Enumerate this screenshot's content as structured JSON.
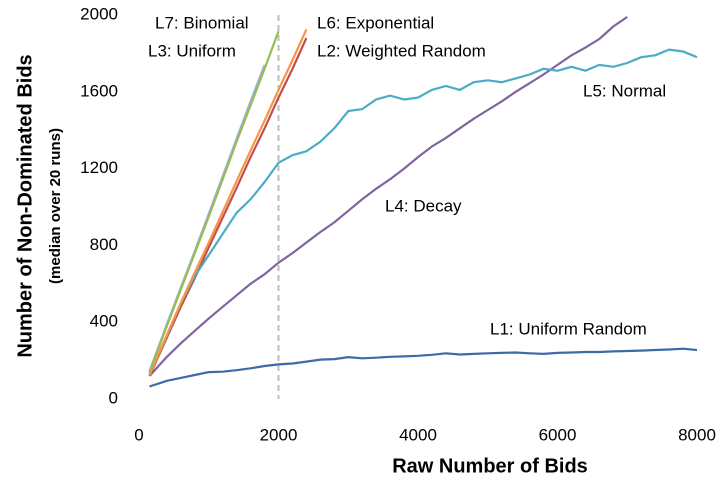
{
  "chart_data": {
    "type": "line",
    "y_label": "Number of Non-Dominated Bids",
    "y_sublabel": "(median over 20 runs)",
    "x_label": "Raw Number of Bids",
    "x": [
      150,
      400,
      600,
      800,
      1000,
      1200,
      1400,
      1600,
      1800,
      2000,
      2200,
      2400,
      2600,
      2800,
      3000,
      3200,
      3400,
      3600,
      3800,
      4000,
      4200,
      4400,
      4600,
      4800,
      5000,
      5200,
      5400,
      5600,
      5800,
      6000,
      6200,
      6400,
      6600,
      6800,
      7000,
      7200,
      7400,
      7600,
      7800,
      8000
    ],
    "series": [
      {
        "name": "L1: Uniform Random",
        "color": "#3f6aa8",
        "values": [
          65,
          95,
          110,
          125,
          140,
          142,
          150,
          160,
          172,
          180,
          185,
          195,
          205,
          208,
          218,
          212,
          215,
          220,
          222,
          225,
          230,
          238,
          232,
          235,
          238,
          240,
          242,
          238,
          235,
          240,
          242,
          245,
          245,
          248,
          250,
          252,
          255,
          258,
          262,
          255
        ]
      },
      {
        "name": "L2: Weighted Random",
        "color": "#c0504d",
        "values": [
          120,
          320,
          480,
          630,
          790,
          945,
          1100,
          1260,
          1410,
          1570,
          1720,
          1880,
          null,
          null,
          null,
          null,
          null,
          null,
          null,
          null,
          null,
          null,
          null,
          null,
          null,
          null,
          null,
          null,
          null,
          null,
          null,
          null,
          null,
          null,
          null,
          null,
          null,
          null,
          null,
          null
        ]
      },
      {
        "name": "L3: Uniform",
        "color": "#95b3d7",
        "values": [
          145,
          390,
          580,
          770,
          965,
          1160,
          1355,
          1550,
          1740,
          null,
          null,
          null,
          null,
          null,
          null,
          null,
          null,
          null,
          null,
          null,
          null,
          null,
          null,
          null,
          null,
          null,
          null,
          null,
          null,
          null,
          null,
          null,
          null,
          null,
          null,
          null,
          null,
          null,
          null,
          null
        ]
      },
      {
        "name": "L4: Decay",
        "color": "#8064a2",
        "values": [
          120,
          220,
          290,
          355,
          420,
          480,
          540,
          600,
          650,
          710,
          760,
          815,
          870,
          920,
          980,
          1040,
          1095,
          1145,
          1200,
          1260,
          1315,
          1360,
          1410,
          1460,
          1505,
          1550,
          1600,
          1645,
          1690,
          1740,
          1790,
          1830,
          1875,
          1940,
          1990,
          null,
          null,
          null,
          null,
          null
        ]
      },
      {
        "name": "L5: Normal",
        "color": "#4bacc6",
        "values": [
          130,
          330,
          500,
          640,
          750,
          860,
          970,
          1040,
          1130,
          1230,
          1270,
          1290,
          1340,
          1410,
          1500,
          1510,
          1560,
          1580,
          1560,
          1570,
          1610,
          1630,
          1610,
          1650,
          1660,
          1650,
          1670,
          1690,
          1720,
          1710,
          1730,
          1710,
          1740,
          1730,
          1750,
          1780,
          1790,
          1820,
          1810,
          1780
        ]
      },
      {
        "name": "L6: Exponential",
        "color": "#f79646",
        "values": [
          125,
          335,
          500,
          660,
          815,
          975,
          1135,
          1295,
          1450,
          1610,
          1765,
          1925,
          null,
          null,
          null,
          null,
          null,
          null,
          null,
          null,
          null,
          null,
          null,
          null,
          null,
          null,
          null,
          null,
          null,
          null,
          null,
          null,
          null,
          null,
          null,
          null,
          null,
          null,
          null,
          null
        ]
      },
      {
        "name": "L7: Binomial",
        "color": "#9bbb59",
        "values": [
          140,
          380,
          570,
          760,
          950,
          1145,
          1340,
          1530,
          1720,
          1915,
          null,
          null,
          null,
          null,
          null,
          null,
          null,
          null,
          null,
          null,
          null,
          null,
          null,
          null,
          null,
          null,
          null,
          null,
          null,
          null,
          null,
          null,
          null,
          null,
          null,
          null,
          null,
          null,
          null,
          null
        ]
      }
    ],
    "vline": 2000,
    "vline_color": "#bfbfbf",
    "xlim": [
      0,
      8000
    ],
    "xticks": [
      0,
      2000,
      4000,
      6000,
      8000
    ],
    "ylim": [
      0,
      2000
    ],
    "yticks": [
      0,
      400,
      800,
      1200,
      1600,
      2000
    ],
    "grid": false
  }
}
